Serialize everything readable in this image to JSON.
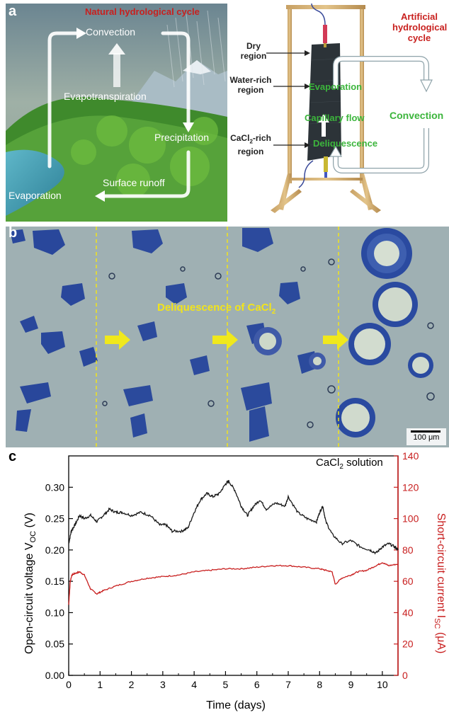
{
  "panel_a": {
    "letter": "a",
    "natural_title": "Natural hydrological cycle",
    "natural_labels": {
      "convection": "Convection",
      "evapotranspiration": "Evapotranspiration",
      "precipitation": "Precipitation",
      "surface_runoff": "Surface runoff",
      "evaporation": "Evaporation"
    },
    "artificial_title": [
      "Artificial",
      "hydrological",
      "cycle"
    ],
    "regions": {
      "dry": [
        "Dry",
        "region"
      ],
      "water_rich": [
        "Water-rich",
        "region"
      ],
      "cacl2_rich_pre": "CaCl",
      "cacl2_rich_sub": "2",
      "cacl2_rich_post": "-rich",
      "cacl2_rich_line2": "region"
    },
    "artificial_labels": {
      "evaporation": "Evaporation",
      "capillary_flow": "Capillary flow",
      "deliquescence": "Deliquescence",
      "convection": "Convection"
    },
    "colors": {
      "title_red": "#c8201e",
      "green_label": "#3cb53c"
    }
  },
  "panel_b": {
    "letter": "b",
    "caption_pre": "Deliquescence of CaCl",
    "caption_sub": "2",
    "scale_bar": "100 μm",
    "colors": {
      "caption": "#f2e41a",
      "arrow": "#f0e81c",
      "background": "#9fb0b3",
      "crystal": "#1f3f9a"
    }
  },
  "panel_c": {
    "letter": "c",
    "annotation_pre": "CaCl",
    "annotation_sub": "2",
    "annotation_post": " solution",
    "y_left_label": "Open-circuit voltage V",
    "y_left_label_sub": "OC",
    "y_left_label_unit": " (V)",
    "y_right_label": "Short-circuit current I",
    "y_right_label_sub": "SC",
    "y_right_label_unit": " (μA)",
    "x_label": "Time (days)",
    "x_ticks": [
      "0",
      "1",
      "2",
      "3",
      "4",
      "5",
      "6",
      "7",
      "8",
      "9",
      "10"
    ],
    "y_left_ticks": [
      "0.00",
      "0.05",
      "0.10",
      "0.15",
      "0.20",
      "0.25",
      "0.30"
    ],
    "y_right_ticks": [
      "0",
      "20",
      "40",
      "60",
      "80",
      "100",
      "120",
      "140"
    ],
    "colors": {
      "voltage": "#1a1a1a",
      "current": "#c81e1e"
    }
  },
  "chart_data": {
    "type": "line",
    "title": "",
    "xlabel": "Time (days)",
    "ylabel": "Open-circuit voltage VOC (V)",
    "ylabel_right": "Short-circuit current ISC (μA)",
    "xlim": [
      0,
      10.5
    ],
    "ylim": [
      0,
      0.35
    ],
    "ylim_right": [
      0,
      140
    ],
    "series": [
      {
        "name": "Open-circuit voltage",
        "axis": "left",
        "x": [
          0,
          0.08,
          0.2,
          0.35,
          0.5,
          0.7,
          0.9,
          1.1,
          1.3,
          1.5,
          1.7,
          2.0,
          2.3,
          2.6,
          2.9,
          3.1,
          3.3,
          3.6,
          3.8,
          4.0,
          4.2,
          4.4,
          4.6,
          4.8,
          5.0,
          5.1,
          5.3,
          5.5,
          5.7,
          5.9,
          6.1,
          6.3,
          6.6,
          6.9,
          7.0,
          7.3,
          7.6,
          7.9,
          8.0,
          8.1,
          8.2,
          8.4,
          8.7,
          9.0,
          9.3,
          9.6,
          9.8,
          10.0,
          10.2,
          10.4,
          10.5
        ],
        "y": [
          0.21,
          0.23,
          0.24,
          0.255,
          0.25,
          0.255,
          0.245,
          0.255,
          0.265,
          0.26,
          0.26,
          0.255,
          0.26,
          0.255,
          0.24,
          0.24,
          0.23,
          0.23,
          0.235,
          0.26,
          0.28,
          0.29,
          0.285,
          0.29,
          0.305,
          0.31,
          0.295,
          0.27,
          0.255,
          0.27,
          0.28,
          0.265,
          0.275,
          0.27,
          0.285,
          0.26,
          0.25,
          0.245,
          0.26,
          0.27,
          0.245,
          0.225,
          0.21,
          0.215,
          0.205,
          0.2,
          0.195,
          0.205,
          0.21,
          0.205,
          0.2
        ]
      },
      {
        "name": "Short-circuit current",
        "axis": "right",
        "x": [
          0,
          0.05,
          0.1,
          0.2,
          0.35,
          0.5,
          0.7,
          0.9,
          1.1,
          1.5,
          2.0,
          2.5,
          3.0,
          3.5,
          4.0,
          4.5,
          5.0,
          5.5,
          6.0,
          6.5,
          7.0,
          7.5,
          8.0,
          8.2,
          8.4,
          8.5,
          8.7,
          9.0,
          9.2,
          9.5,
          9.8,
          10.0,
          10.2,
          10.5
        ],
        "y": [
          45,
          60,
          64,
          65,
          66,
          64,
          55,
          52,
          54,
          57,
          60,
          62,
          63,
          64,
          66,
          67,
          68,
          68,
          69,
          70,
          70,
          69,
          68,
          67,
          66,
          58,
          62,
          64,
          66,
          67,
          70,
          72,
          70,
          71
        ]
      }
    ]
  }
}
